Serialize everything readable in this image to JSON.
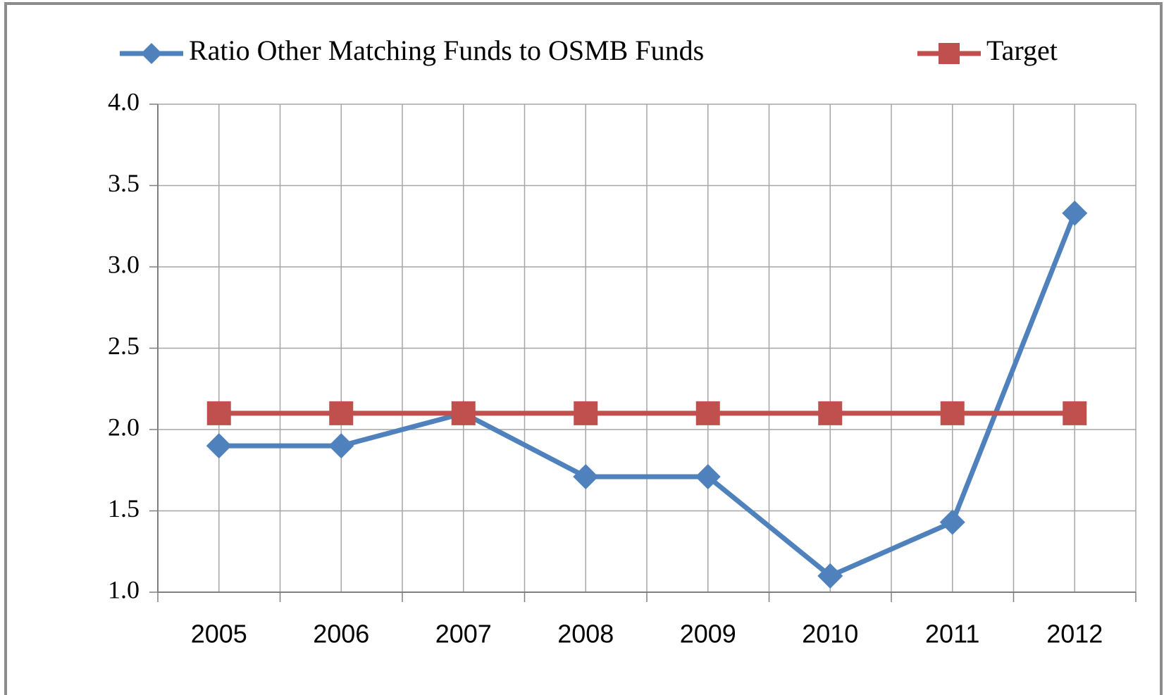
{
  "chart_data": {
    "type": "line",
    "categories": [
      "2005",
      "2006",
      "2007",
      "2008",
      "2009",
      "2010",
      "2011",
      "2012"
    ],
    "series": [
      {
        "name": "Ratio Other Matching Funds to OSMB Funds",
        "color": "#4f81bd",
        "marker": "diamond",
        "values": [
          1.9,
          1.9,
          2.1,
          1.71,
          1.71,
          1.1,
          1.43,
          3.33
        ]
      },
      {
        "name": "Target",
        "color": "#c0504d",
        "marker": "square",
        "values": [
          2.1,
          2.1,
          2.1,
          2.1,
          2.1,
          2.1,
          2.1,
          2.1
        ]
      }
    ],
    "ylim": [
      1,
      4
    ],
    "yticks": [
      {
        "value": 1,
        "label": "1.0"
      },
      1.5,
      {
        "value": 2,
        "label": "2.0"
      },
      2.5,
      {
        "value": 3,
        "label": "3.0"
      },
      3.5,
      {
        "value": 4,
        "label": "4.0"
      }
    ],
    "grid": true,
    "legend": "top"
  }
}
